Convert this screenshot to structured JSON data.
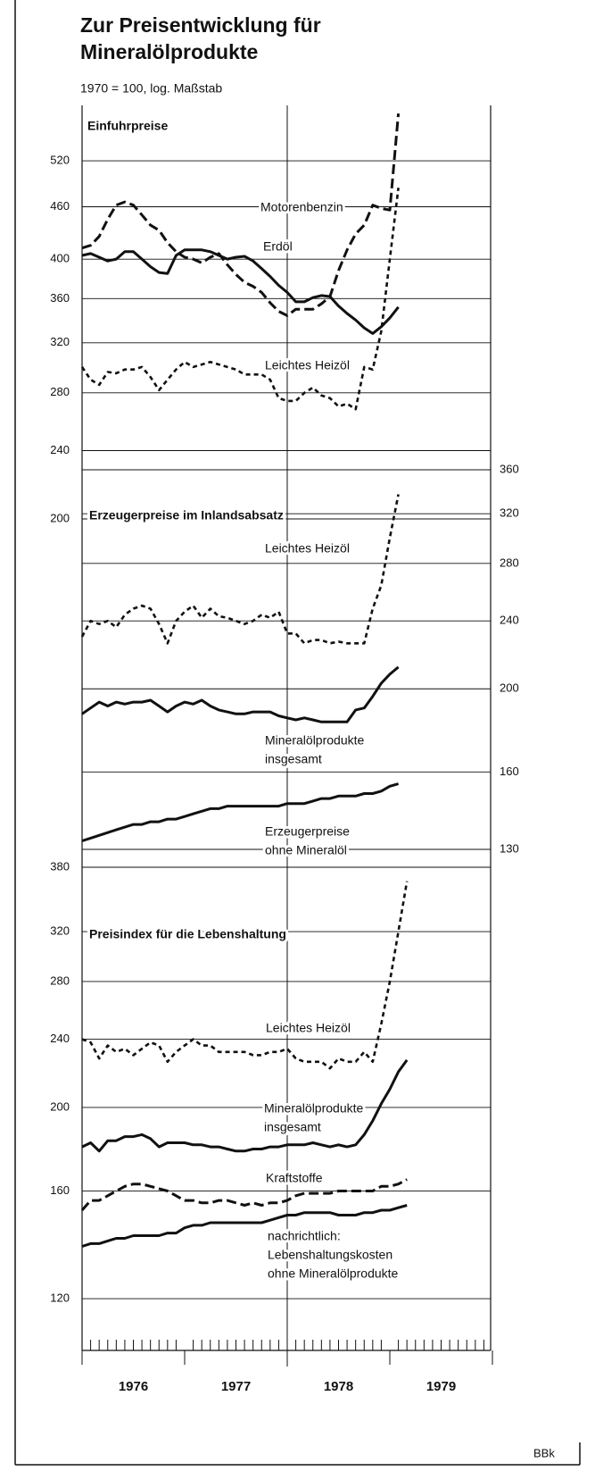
{
  "title": [
    "Zur Preisentwicklung für",
    "Mineralölprodukte"
  ],
  "subtitle": "1970 = 100, log. Maßstab",
  "source": "BBk",
  "x_labels": [
    "1976",
    "1977",
    "1978",
    "1979"
  ],
  "chart_data": [
    {
      "type": "line",
      "title": "Einfuhrpreise",
      "log_scale": true,
      "y_axis_side": "left",
      "grid": true,
      "ylim": [
        200,
        600
      ],
      "yticks": [
        200,
        240,
        280,
        320,
        360,
        400,
        460,
        520
      ],
      "series": [
        {
          "name": "Motorenbenzin",
          "color": "#111111",
          "style": "dashed",
          "values": [
            412,
            415,
            425,
            445,
            462,
            466,
            462,
            450,
            438,
            432,
            418,
            408,
            402,
            400,
            396,
            402,
            406,
            394,
            384,
            376,
            372,
            366,
            356,
            348,
            344,
            350,
            350,
            350,
            355,
            362,
            388,
            410,
            428,
            438,
            462,
            458,
            456,
            590
          ]
        },
        {
          "name": "Erdöl",
          "color": "#111111",
          "style": "solid",
          "values": [
            404,
            406,
            402,
            398,
            400,
            408,
            408,
            400,
            392,
            386,
            385,
            404,
            410,
            410,
            410,
            408,
            404,
            400,
            402,
            403,
            398,
            390,
            382,
            373,
            366,
            357,
            357,
            361,
            363,
            362,
            353,
            346,
            340,
            333,
            328,
            334,
            342,
            352
          ]
        },
        {
          "name": "Leichtes Heizöl",
          "color": "#111111",
          "style": "dotted",
          "values": [
            300,
            290,
            286,
            296,
            295,
            298,
            298,
            300,
            292,
            282,
            290,
            298,
            304,
            300,
            302,
            304,
            302,
            300,
            298,
            294,
            294,
            294,
            290,
            276,
            274,
            274,
            280,
            284,
            278,
            276,
            270,
            272,
            268,
            300,
            298,
            330,
            400,
            484
          ]
        }
      ]
    },
    {
      "type": "line",
      "title": "Erzeugerpreise im Inlandsabsatz",
      "log_scale": true,
      "y_axis_side": "right",
      "grid": true,
      "ylim": [
        130,
        360
      ],
      "yticks": [
        130,
        160,
        200,
        240,
        280,
        320,
        360
      ],
      "series": [
        {
          "name": "Leichtes Heizöl",
          "color": "#111111",
          "style": "dotted",
          "values": [
            230,
            240,
            238,
            240,
            236,
            244,
            248,
            250,
            248,
            238,
            226,
            240,
            246,
            250,
            242,
            248,
            243,
            242,
            240,
            238,
            240,
            244,
            242,
            246,
            232,
            232,
            226,
            228,
            228,
            226,
            227,
            226,
            226,
            226,
            248,
            264,
            300,
            337
          ]
        },
        {
          "name": [
            "Mineralölprodukte",
            "insgesamt"
          ],
          "color": "#111111",
          "style": "solid",
          "values": [
            187,
            190,
            193,
            191,
            193,
            192,
            193,
            193,
            194,
            191,
            188,
            191,
            193,
            192,
            194,
            191,
            189,
            188,
            187,
            187,
            188,
            188,
            188,
            186,
            185,
            184,
            185,
            184,
            183,
            183,
            183,
            183,
            189,
            190,
            196,
            203,
            208,
            212
          ]
        },
        {
          "name": [
            "Erzeugerpreise",
            "ohne Mineralöl"
          ],
          "color": "#111111",
          "style": "solid",
          "values": [
            133,
            134,
            135,
            136,
            137,
            138,
            139,
            139,
            140,
            140,
            141,
            141,
            142,
            143,
            144,
            145,
            145,
            146,
            146,
            146,
            146,
            146,
            146,
            146,
            147,
            147,
            147,
            148,
            149,
            149,
            150,
            150,
            150,
            151,
            151,
            152,
            154,
            155
          ]
        }
      ]
    },
    {
      "type": "line",
      "title": "Preisindex für die Lebenshaltung",
      "log_scale": true,
      "y_axis_side": "left",
      "grid": true,
      "ylim": [
        105,
        380
      ],
      "yticks": [
        120,
        160,
        200,
        240,
        280,
        320,
        380
      ],
      "series": [
        {
          "name": "Leichtes Heizöl",
          "color": "#111111",
          "style": "dotted",
          "values": [
            240,
            238,
            228,
            236,
            232,
            234,
            230,
            234,
            238,
            236,
            226,
            232,
            236,
            240,
            236,
            236,
            232,
            232,
            232,
            232,
            230,
            230,
            232,
            232,
            234,
            228,
            226,
            226,
            226,
            222,
            228,
            226,
            226,
            232,
            226,
            250,
            280,
            320,
            366
          ]
        },
        {
          "name": [
            "Mineralölprodukte",
            "insgesamt"
          ],
          "color": "#111111",
          "style": "solid",
          "values": [
            180,
            182,
            178,
            183,
            183,
            185,
            185,
            186,
            184,
            180,
            182,
            182,
            182,
            181,
            181,
            180,
            180,
            179,
            178,
            178,
            179,
            179,
            180,
            180,
            181,
            181,
            181,
            182,
            181,
            180,
            181,
            180,
            181,
            186,
            193,
            202,
            210,
            220,
            227
          ]
        },
        {
          "name": "Kraftstoffe",
          "color": "#111111",
          "style": "dashed",
          "values": [
            152,
            156,
            156,
            158,
            160,
            162,
            163,
            163,
            162,
            161,
            160,
            158,
            156,
            156,
            155,
            155,
            156,
            156,
            155,
            154,
            155,
            154,
            155,
            155,
            156,
            158,
            159,
            159,
            159,
            159,
            160,
            160,
            160,
            160,
            160,
            162,
            162,
            163,
            165
          ]
        },
        {
          "name": [
            "nachrichtlich:",
            "Lebenshaltungskosten",
            "ohne Mineralölprodukte"
          ],
          "color": "#111111",
          "style": "solid",
          "values": [
            138,
            139,
            139,
            140,
            141,
            141,
            142,
            142,
            142,
            142,
            143,
            143,
            145,
            146,
            146,
            147,
            147,
            147,
            147,
            147,
            147,
            147,
            148,
            149,
            150,
            150,
            151,
            151,
            151,
            151,
            150,
            150,
            150,
            151,
            151,
            152,
            152,
            153,
            154
          ]
        }
      ]
    }
  ]
}
